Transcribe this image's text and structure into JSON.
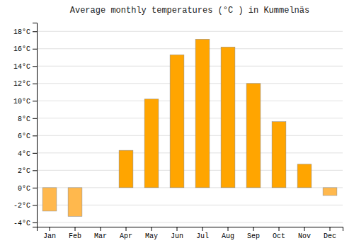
{
  "chart_data": {
    "type": "bar",
    "title": "Average monthly temperatures (°C ) in Kummelnäs",
    "categories": [
      "Jan",
      "Feb",
      "Mar",
      "Apr",
      "May",
      "Jun",
      "Jul",
      "Aug",
      "Sep",
      "Oct",
      "Nov",
      "Dec"
    ],
    "values": [
      -2.7,
      -3.3,
      0.0,
      4.3,
      10.2,
      15.3,
      17.1,
      16.2,
      12.0,
      7.6,
      2.7,
      -0.9
    ],
    "colors": [
      "#FFB84D",
      "#FFB84D",
      "#FFA500",
      "#FFA500",
      "#FFA500",
      "#FFA500",
      "#FFA500",
      "#FFA500",
      "#FFA500",
      "#FFA500",
      "#FFA500",
      "#FFB84D"
    ],
    "ylim": [
      -4.5,
      19
    ],
    "yticks": [
      {
        "value": -4,
        "label": "-4°C"
      },
      {
        "value": -2,
        "label": "-2°C"
      },
      {
        "value": 0,
        "label": "0°C"
      },
      {
        "value": 2,
        "label": "2°C"
      },
      {
        "value": 4,
        "label": "4°C"
      },
      {
        "value": 6,
        "label": "6°C"
      },
      {
        "value": 8,
        "label": "8°C"
      },
      {
        "value": 10,
        "label": "10°C"
      },
      {
        "value": 12,
        "label": "12°C"
      },
      {
        "value": 14,
        "label": "14°C"
      },
      {
        "value": 16,
        "label": "16°C"
      },
      {
        "value": 18,
        "label": "18°C"
      }
    ],
    "grid": true
  }
}
